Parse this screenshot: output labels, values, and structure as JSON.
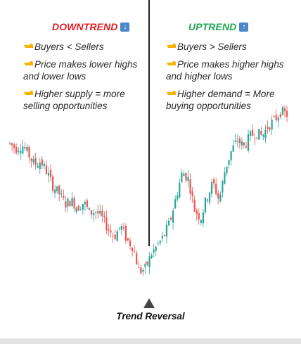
{
  "colors": {
    "down_title": "#e31b23",
    "up_title": "#1da651",
    "bull_candle": "#26a69a",
    "bear_candle": "#ef5350",
    "divider": "#222222",
    "hand_emoji": "#f4b400"
  },
  "panels": {
    "downtrend": {
      "title": "DOWNTREND",
      "icon": "down-arrow-icon",
      "bullets": [
        "Buyers < Sellers",
        "Price makes lower highs and lower lows",
        "Higher supply = more selling opportunities"
      ]
    },
    "uptrend": {
      "title": "UPTREND",
      "icon": "up-arrow-icon",
      "bullets": [
        "Buyers > Sellers",
        "Price makes higher highs and higher lows",
        "Higher demand = More buying opportunities"
      ]
    }
  },
  "reversal": {
    "label": "Trend Reversal"
  },
  "chart_data": {
    "type": "candlestick",
    "title": "",
    "xlabel": "",
    "ylabel": "",
    "axes_visible": false,
    "grid": false,
    "price_path": [
      [
        0,
        82
      ],
      [
        4,
        79
      ],
      [
        8,
        81
      ],
      [
        12,
        76
      ],
      [
        16,
        70
      ],
      [
        20,
        72
      ],
      [
        24,
        66
      ],
      [
        28,
        58
      ],
      [
        32,
        54
      ],
      [
        36,
        48
      ],
      [
        40,
        50
      ],
      [
        44,
        46
      ],
      [
        48,
        49
      ],
      [
        52,
        43
      ],
      [
        56,
        44
      ],
      [
        60,
        40
      ],
      [
        64,
        34
      ],
      [
        68,
        30
      ],
      [
        72,
        36
      ],
      [
        76,
        28
      ],
      [
        80,
        24
      ],
      [
        84,
        10
      ],
      [
        88,
        12
      ],
      [
        92,
        20
      ],
      [
        96,
        25
      ],
      [
        100,
        30
      ],
      [
        104,
        38
      ],
      [
        108,
        52
      ],
      [
        112,
        66
      ],
      [
        116,
        62
      ],
      [
        120,
        45
      ],
      [
        124,
        40
      ],
      [
        128,
        52
      ],
      [
        132,
        60
      ],
      [
        136,
        50
      ],
      [
        140,
        68
      ],
      [
        144,
        78
      ],
      [
        148,
        84
      ],
      [
        152,
        80
      ],
      [
        156,
        86
      ],
      [
        160,
        88
      ],
      [
        164,
        86
      ],
      [
        168,
        92
      ],
      [
        172,
        95
      ],
      [
        176,
        100
      ],
      [
        180,
        98
      ]
    ],
    "reversal_point": "Trend Reversal"
  }
}
